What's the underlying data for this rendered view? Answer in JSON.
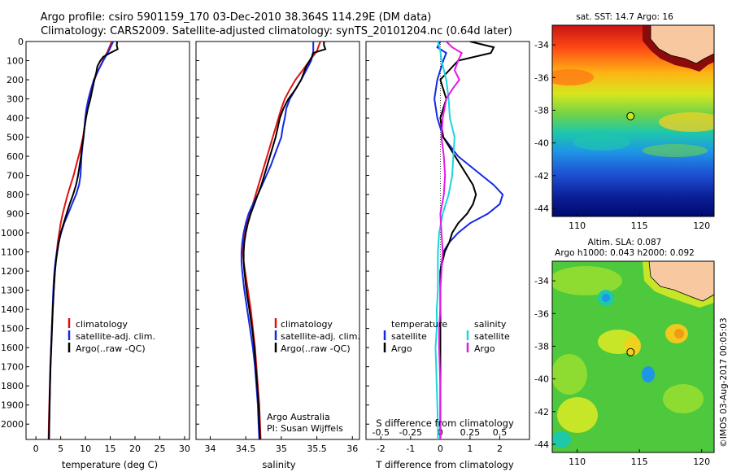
{
  "header": {
    "title_line1": "Argo profile: csiro 5901159_170 03-Dec-2010 38.364S 114.29E (DM data)",
    "title_line2": "Climatology: CARS2009. Satellite-adjusted climatology: synTS_20101204.nc (0.64d later)"
  },
  "colors": {
    "climatology": "#e01010",
    "satellite": "#1428e6",
    "argo": "#000000",
    "salinity_satellite": "#19d6e0",
    "salinity_argo": "#e619e6"
  },
  "chart_data": [
    {
      "type": "line",
      "name": "temperature-profile",
      "xlabel": "temperature (deg C)",
      "xlim": [
        -2,
        31
      ],
      "ylim": [
        2080,
        0
      ],
      "xticks": [
        0,
        5,
        10,
        15,
        20,
        25,
        30
      ],
      "yticks": [
        0,
        100,
        200,
        300,
        400,
        500,
        600,
        700,
        800,
        900,
        1000,
        1100,
        1200,
        1300,
        1400,
        1500,
        1600,
        1700,
        1800,
        1900,
        2000
      ],
      "legend": [
        "climatology",
        "satellite-adj. clim.",
        "Argo(..raw -QC)"
      ],
      "series": [
        {
          "name": "climatology",
          "depth": [
            0,
            50,
            100,
            150,
            200,
            250,
            300,
            350,
            400,
            450,
            500,
            550,
            600,
            650,
            700,
            750,
            800,
            850,
            900,
            950,
            1000,
            1050,
            1100,
            1150,
            1200,
            1250,
            1300,
            1400,
            1500,
            1600,
            1700,
            1800,
            1900,
            2000,
            2080
          ],
          "values": [
            15.3,
            14.5,
            13.5,
            12.6,
            11.8,
            11.2,
            10.8,
            10.4,
            10.1,
            9.8,
            9.5,
            9.1,
            8.6,
            8.1,
            7.6,
            7.0,
            6.4,
            5.9,
            5.4,
            5.0,
            4.7,
            4.4,
            4.2,
            4.0,
            3.85,
            3.7,
            3.6,
            3.4,
            3.2,
            3.05,
            2.9,
            2.8,
            2.7,
            2.6,
            2.55
          ]
        },
        {
          "name": "satellite",
          "depth": [
            0,
            50,
            100,
            150,
            200,
            250,
            300,
            350,
            400,
            450,
            500,
            550,
            600,
            650,
            700,
            750,
            800,
            850,
            900,
            950,
            1000,
            1050,
            1100,
            1150,
            1200,
            1250,
            1300,
            1400,
            1500,
            1600,
            1700,
            1800,
            1900,
            2000,
            2080
          ],
          "values": [
            15.6,
            14.7,
            13.6,
            12.6,
            11.7,
            11.1,
            10.6,
            10.2,
            9.95,
            9.8,
            9.6,
            9.4,
            9.2,
            9.1,
            9.0,
            8.7,
            8.1,
            7.3,
            6.5,
            5.7,
            5.1,
            4.6,
            4.2,
            3.95,
            3.75,
            3.6,
            3.5,
            3.35,
            3.2,
            3.05,
            2.95,
            2.85,
            2.78,
            2.7,
            2.65
          ]
        },
        {
          "name": "argo",
          "depth": [
            0,
            20,
            40,
            60,
            80,
            100,
            130,
            160,
            200,
            250,
            300,
            350,
            400,
            450,
            500,
            550,
            600,
            650,
            700,
            750,
            800,
            850,
            900,
            950,
            1000,
            1050,
            1100,
            1150,
            1200,
            1300,
            1400,
            1500,
            1600,
            1700,
            1800,
            1900,
            2000,
            2080
          ],
          "values": [
            16.4,
            16.3,
            16.5,
            15.0,
            13.6,
            13.0,
            12.4,
            12.2,
            11.8,
            11.4,
            11.0,
            10.5,
            10.1,
            9.8,
            9.6,
            9.3,
            9.1,
            8.8,
            8.5,
            8.1,
            7.5,
            6.8,
            6.2,
            5.6,
            5.0,
            4.6,
            4.3,
            4.05,
            3.85,
            3.6,
            3.4,
            3.25,
            3.1,
            2.95,
            2.85,
            2.75,
            2.68,
            2.62
          ]
        }
      ]
    },
    {
      "type": "line",
      "name": "salinity-profile",
      "xlabel": "salinity",
      "xlim": [
        33.8,
        36.1
      ],
      "ylim": [
        2080,
        0
      ],
      "xticks": [
        34,
        34.5,
        35,
        35.5,
        36
      ],
      "legend": [
        "climatology",
        "satellite-adj. clim.",
        "Argo(..raw -QC)"
      ],
      "annotation": [
        "Argo Australia",
        "PI: Susan Wijffels"
      ],
      "series": [
        {
          "name": "climatology",
          "depth": [
            0,
            50,
            100,
            150,
            200,
            250,
            300,
            350,
            400,
            450,
            500,
            550,
            600,
            650,
            700,
            750,
            800,
            850,
            900,
            950,
            1000,
            1050,
            1100,
            1150,
            1200,
            1300,
            1400,
            1500,
            1600,
            1700,
            1800,
            1900,
            2000,
            2080
          ],
          "values": [
            35.55,
            35.5,
            35.4,
            35.3,
            35.2,
            35.12,
            35.05,
            35.0,
            34.96,
            34.92,
            34.88,
            34.84,
            34.8,
            34.76,
            34.72,
            34.68,
            34.64,
            34.6,
            34.56,
            34.52,
            34.49,
            34.47,
            34.46,
            34.47,
            34.49,
            34.53,
            34.57,
            34.6,
            34.63,
            34.65,
            34.67,
            34.69,
            34.7,
            34.71
          ]
        },
        {
          "name": "satellite",
          "depth": [
            0,
            50,
            100,
            150,
            200,
            250,
            300,
            350,
            400,
            450,
            500,
            550,
            600,
            650,
            700,
            750,
            800,
            850,
            900,
            950,
            1000,
            1050,
            1100,
            1150,
            1200,
            1300,
            1400,
            1500,
            1600,
            1700,
            1800,
            1900,
            2000,
            2080
          ],
          "values": [
            35.45,
            35.45,
            35.42,
            35.35,
            35.28,
            35.2,
            35.12,
            35.07,
            35.05,
            35.02,
            35.0,
            34.95,
            34.9,
            34.85,
            34.79,
            34.73,
            34.67,
            34.6,
            34.54,
            34.5,
            34.47,
            34.45,
            34.44,
            34.44,
            34.45,
            34.48,
            34.52,
            34.56,
            34.6,
            34.63,
            34.65,
            34.67,
            34.68,
            34.69
          ]
        },
        {
          "name": "argo",
          "depth": [
            0,
            20,
            40,
            60,
            80,
            100,
            130,
            160,
            200,
            250,
            300,
            350,
            400,
            450,
            500,
            550,
            600,
            650,
            700,
            750,
            800,
            850,
            900,
            950,
            1000,
            1050,
            1100,
            1150,
            1200,
            1300,
            1400,
            1500,
            1600,
            1700,
            1800,
            1900,
            2000,
            2080
          ],
          "values": [
            35.6,
            35.6,
            35.62,
            35.45,
            35.43,
            35.4,
            35.35,
            35.32,
            35.28,
            35.2,
            35.1,
            35.03,
            34.98,
            34.95,
            34.92,
            34.88,
            34.84,
            34.8,
            34.76,
            34.72,
            34.67,
            34.62,
            34.57,
            34.53,
            34.5,
            34.48,
            34.47,
            34.47,
            34.48,
            34.51,
            34.55,
            34.59,
            34.62,
            34.64,
            34.66,
            34.68,
            34.69,
            34.7
          ]
        }
      ]
    },
    {
      "type": "line",
      "name": "difference-profile",
      "xlabel": "T difference from climatology",
      "xlabel_top": "S difference from climatology",
      "xlim": [
        -2.5,
        3.0
      ],
      "ylim": [
        2080,
        0
      ],
      "xticks": [
        -2,
        -1,
        0,
        1,
        2
      ],
      "xticks_top": [
        -0.5,
        -0.25,
        0,
        0.25,
        0.5
      ],
      "legend_headers": [
        "temperature",
        "salinity"
      ],
      "legend": [
        "satellite",
        "Argo",
        "satellite",
        "Argo"
      ],
      "series": [
        {
          "name": "T satellite",
          "depth": [
            0,
            30,
            60,
            100,
            200,
            300,
            400,
            500,
            600,
            700,
            750,
            800,
            850,
            900,
            950,
            1000,
            1050,
            1100,
            1200,
            1300,
            1400,
            1500,
            1600,
            1800,
            2000,
            2080
          ],
          "values": [
            0.0,
            -0.1,
            0.2,
            0.1,
            -0.1,
            -0.2,
            -0.1,
            0.1,
            0.6,
            1.4,
            1.8,
            2.1,
            2.0,
            1.6,
            1.0,
            0.6,
            0.3,
            0.1,
            0.0,
            0.0,
            0.0,
            0.0,
            0.0,
            0.0,
            0.0,
            0.0
          ]
        },
        {
          "name": "T argo",
          "depth": [
            0,
            30,
            60,
            100,
            200,
            300,
            400,
            500,
            600,
            650,
            700,
            750,
            800,
            850,
            900,
            950,
            1000,
            1050,
            1100,
            1200,
            1300,
            1400,
            1600,
            1800,
            2000,
            2080
          ],
          "values": [
            1.0,
            1.8,
            1.7,
            0.6,
            0.0,
            0.2,
            0.0,
            0.1,
            0.5,
            0.7,
            0.9,
            1.1,
            1.2,
            1.1,
            0.9,
            0.6,
            0.4,
            0.3,
            0.15,
            0.0,
            0.0,
            0.0,
            0.0,
            0.0,
            0.0,
            0.0
          ]
        },
        {
          "name": "S satellite",
          "depth": [
            0,
            50,
            100,
            200,
            300,
            400,
            500,
            600,
            700,
            800,
            900,
            1000,
            1100,
            1200,
            1300,
            1400,
            1500,
            1600,
            1800,
            2000,
            2080
          ],
          "values": [
            -0.02,
            0.0,
            0.01,
            0.05,
            0.07,
            0.08,
            0.12,
            0.11,
            0.1,
            0.07,
            0.02,
            -0.01,
            -0.02,
            -0.02,
            -0.02,
            -0.03,
            -0.03,
            -0.04,
            -0.03,
            -0.02,
            -0.02
          ]
        },
        {
          "name": "S argo",
          "depth": [
            0,
            30,
            60,
            100,
            150,
            200,
            250,
            300,
            400,
            500,
            600,
            700,
            800,
            900,
            1000,
            1100,
            1200,
            1300,
            1400,
            1500,
            1600,
            1800,
            2000,
            2080
          ],
          "values": [
            0.05,
            0.1,
            0.18,
            0.15,
            0.12,
            0.16,
            0.1,
            0.05,
            0.02,
            0.01,
            0.03,
            0.04,
            0.03,
            0.0,
            0.01,
            0.02,
            0.01,
            0.0,
            0.0,
            -0.01,
            -0.01,
            0.0,
            0.0,
            0.0
          ]
        }
      ]
    },
    {
      "type": "heatmap",
      "name": "sst-map",
      "title": "sat. SST: 14.7  Argo: 16",
      "xlim": [
        108,
        121
      ],
      "ylim": [
        -44.5,
        -32.8
      ],
      "xticks": [
        110,
        115,
        120
      ],
      "yticks": [
        -34,
        -36,
        -38,
        -40,
        -42,
        -44
      ],
      "argo_marker": {
        "lon": 114.29,
        "lat": -38.364
      }
    },
    {
      "type": "heatmap",
      "name": "sla-map",
      "title_line1": "Altim. SLA: 0.087",
      "title_line2": "Argo h1000: 0.043 h2000: 0.092",
      "xlim": [
        108,
        121
      ],
      "ylim": [
        -44.5,
        -32.8
      ],
      "xticks": [
        110,
        115,
        120
      ],
      "yticks": [
        -34,
        -36,
        -38,
        -40,
        -42,
        -44
      ],
      "argo_marker": {
        "lon": 114.29,
        "lat": -38.364
      }
    }
  ],
  "watermark": "©IMOS 03-Aug-2017 00:05:03"
}
